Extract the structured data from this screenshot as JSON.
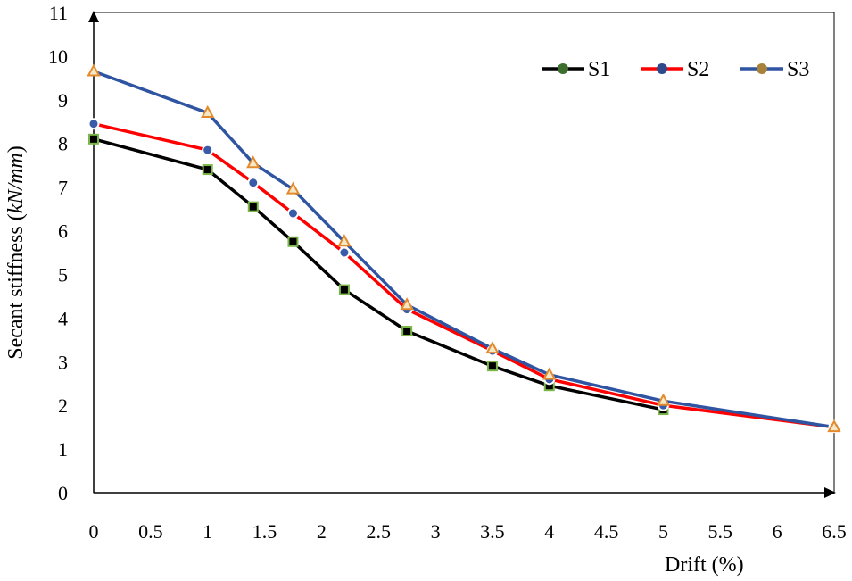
{
  "chart_data": {
    "type": "line",
    "title": "",
    "xlabel": "Drift (%)",
    "ylabel_main": "Secant stiffness ",
    "ylabel_open": "(",
    "ylabel_units": "kN/mm",
    "ylabel_close": ")",
    "xlim": [
      0,
      6.5
    ],
    "ylim": [
      0,
      11
    ],
    "x_ticks": [
      "0",
      "0.5",
      "1",
      "1.5",
      "2",
      "2.5",
      "3",
      "3.5",
      "4",
      "4.5",
      "5",
      "5.5",
      "6",
      "6.5"
    ],
    "y_ticks": [
      "0",
      "1",
      "2",
      "3",
      "4",
      "5",
      "6",
      "7",
      "8",
      "9",
      "10",
      "11"
    ],
    "grid": false,
    "legend_position": "top-right",
    "series": [
      {
        "name": "S1",
        "line_color": "#000000",
        "marker": "square",
        "marker_fill": "#000000",
        "marker_edge": "#7ab648",
        "legend_dot": "#3c6e2e",
        "x": [
          0,
          1,
          1.4,
          1.75,
          2.2,
          2.75,
          3.5,
          4,
          5
        ],
        "values": [
          8.1,
          7.4,
          6.55,
          5.75,
          4.65,
          3.7,
          2.9,
          2.45,
          1.9
        ]
      },
      {
        "name": "S2",
        "line_color": "#ff0000",
        "marker": "circle",
        "marker_fill": "#3a5ba8",
        "marker_edge": "#ffffff",
        "legend_dot": "#2e4a8c",
        "x": [
          0,
          1,
          1.4,
          1.75,
          2.2,
          2.75,
          3.5,
          4,
          5,
          6.5
        ],
        "values": [
          8.45,
          7.85,
          7.1,
          6.4,
          5.5,
          4.2,
          3.25,
          2.6,
          2.0,
          1.5
        ]
      },
      {
        "name": "S3",
        "line_color": "#2e54a2",
        "marker": "triangle",
        "marker_fill": "#f5e8c8",
        "marker_edge": "#e38b2c",
        "legend_dot": "#a8823a",
        "x": [
          0,
          1,
          1.4,
          1.75,
          2.2,
          2.75,
          3.5,
          4,
          5,
          6.5
        ],
        "values": [
          9.65,
          8.7,
          7.55,
          6.95,
          5.75,
          4.3,
          3.3,
          2.7,
          2.1,
          1.5
        ]
      }
    ]
  }
}
